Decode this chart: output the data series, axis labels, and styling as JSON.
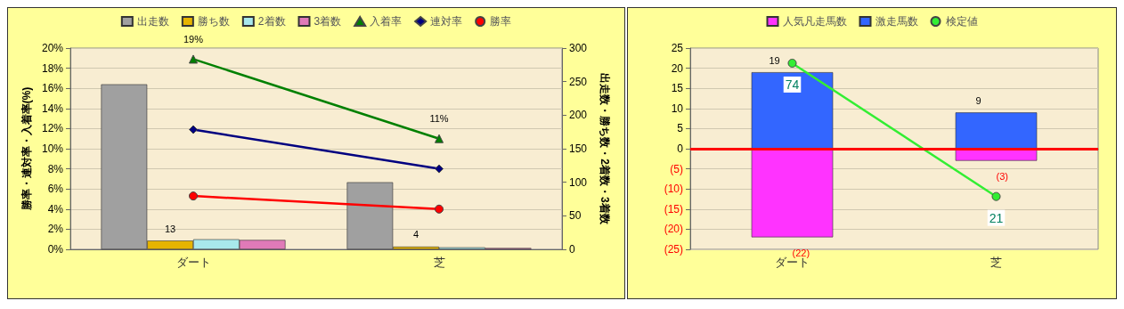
{
  "chart_data": [
    {
      "type": "bar",
      "categories": [
        "ダート",
        "芝"
      ],
      "ylabel": "勝率・連対率・入着率(%)",
      "y2label": "出走数・勝ち数・2着数・3着数",
      "series": [
        {
          "name": "出走数",
          "axis": "y2",
          "color": "#a0a0a0",
          "values": [
            246,
            100
          ]
        },
        {
          "name": "勝ち数",
          "axis": "y2",
          "color": "#e6b400",
          "values": [
            13,
            4
          ],
          "value_labels": [
            "13",
            "4"
          ]
        },
        {
          "name": "2着数",
          "axis": "y2",
          "color": "#a8e8ec",
          "values": [
            15,
            3
          ]
        },
        {
          "name": "3着数",
          "axis": "y2",
          "color": "#e07ab8",
          "values": [
            14,
            2
          ]
        },
        {
          "name": "入着率",
          "type": "line",
          "color": "#008000",
          "marker": "triangle",
          "values": [
            18.9,
            11
          ],
          "value_labels": [
            "19%",
            "11%"
          ]
        },
        {
          "name": "連対率",
          "type": "line",
          "color": "#000080",
          "marker": "diamond",
          "values": [
            11.9,
            8
          ]
        },
        {
          "name": "勝率",
          "type": "line",
          "color": "#ff0000",
          "marker": "circle",
          "values": [
            5.3,
            4
          ]
        }
      ],
      "ylim": [
        0,
        20
      ],
      "yticks": [
        {
          "value": 0,
          "label": "0%"
        },
        {
          "value": 2,
          "label": "2%"
        },
        {
          "value": 4,
          "label": "4%"
        },
        {
          "value": 6,
          "label": "6%"
        },
        {
          "value": 8,
          "label": "8%"
        },
        {
          "value": 10,
          "label": "10%"
        },
        {
          "value": 12,
          "label": "12%"
        },
        {
          "value": 14,
          "label": "14%"
        },
        {
          "value": 16,
          "label": "16%"
        },
        {
          "value": 18,
          "label": "18%"
        },
        {
          "value": 20,
          "label": "20%"
        }
      ],
      "y2lim": [
        0,
        300
      ],
      "y2ticks": [
        0,
        50,
        100,
        150,
        200,
        250,
        300
      ],
      "grid": "y",
      "legend": "top"
    },
    {
      "type": "bar",
      "categories": [
        "ダート",
        "芝"
      ],
      "stacked": true,
      "series": [
        {
          "name": "人気凡走馬数",
          "color": "#ff33ff",
          "values": [
            -22,
            -3
          ],
          "value_labels": [
            "(22)",
            "(3)"
          ]
        },
        {
          "name": "激走馬数",
          "color": "#3366ff",
          "values": [
            19,
            9
          ],
          "value_labels": [
            "19",
            "9"
          ]
        },
        {
          "name": "検定値",
          "type": "line",
          "axis": "y2",
          "color": "#33ee33",
          "marker": "circle",
          "values": [
            74,
            21
          ],
          "value_labels": [
            "74",
            "21"
          ]
        }
      ],
      "ylim": [
        -25,
        25
      ],
      "yticks": [
        {
          "value": -25,
          "label": "(25)"
        },
        {
          "value": -20,
          "label": "(20)"
        },
        {
          "value": -15,
          "label": "(15)"
        },
        {
          "value": -10,
          "label": "(10)"
        },
        {
          "value": -5,
          "label": "(5)"
        },
        0,
        5,
        10,
        15,
        20,
        25
      ],
      "tick_labels": "xy",
      "grid": "y",
      "legend": "top",
      "ref_lines": [
        {
          "axis": "y",
          "value": 0,
          "color": "#ff0000"
        }
      ]
    }
  ]
}
